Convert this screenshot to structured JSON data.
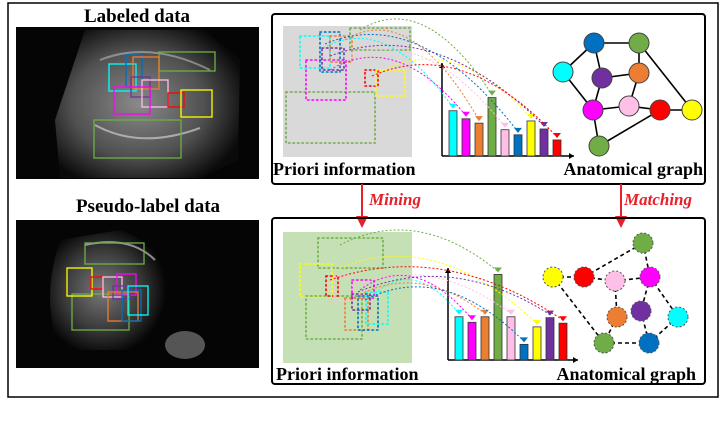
{
  "labels": {
    "labeled_data": "Labeled data",
    "pseudo_label_data": "Pseudo-label data",
    "priori_top": "Priori information",
    "graph_top": "Anatomical graph",
    "priori_bottom": "Priori information",
    "graph_bottom": "Anatomical graph",
    "mining": "Mining",
    "matching": "Matching"
  },
  "structure_colors": {
    "cyan": "#00ffff",
    "blue": "#0070c0",
    "orange": "#ed7d31",
    "green": "#70ad47",
    "purple": "#7030a0",
    "pink": "#ffbfe6",
    "magenta": "#ff00ff",
    "red": "#ff0000",
    "yellow": "#ffff00"
  },
  "top_histogram": {
    "order": [
      "cyan",
      "magenta",
      "orange",
      "green",
      "pink",
      "blue",
      "yellow",
      "purple",
      "red"
    ],
    "relative_heights": [
      0.62,
      0.51,
      0.45,
      0.8,
      0.36,
      0.29,
      0.48,
      0.37,
      0.22
    ]
  },
  "bottom_histogram": {
    "order": [
      "cyan",
      "magenta",
      "orange",
      "green",
      "pink",
      "blue",
      "yellow",
      "purple",
      "red"
    ],
    "relative_heights": [
      0.47,
      0.41,
      0.47,
      0.93,
      0.47,
      0.17,
      0.36,
      0.46,
      0.4
    ]
  },
  "top_graph_edges": [
    [
      "blue",
      "green"
    ],
    [
      "blue",
      "cyan"
    ],
    [
      "green",
      "orange"
    ],
    [
      "green",
      "yellow"
    ],
    [
      "blue",
      "purple"
    ],
    [
      "purple",
      "orange"
    ],
    [
      "cyan",
      "magenta"
    ],
    [
      "purple",
      "magenta"
    ],
    [
      "orange",
      "pink"
    ],
    [
      "magenta",
      "pink"
    ],
    [
      "pink",
      "red"
    ],
    [
      "red",
      "yellow"
    ],
    [
      "magenta",
      "green2"
    ],
    [
      "green2",
      "red"
    ]
  ],
  "bottom_graph_edges": [
    [
      "yellow",
      "red"
    ],
    [
      "red",
      "pink"
    ],
    [
      "pink",
      "magenta"
    ],
    [
      "red",
      "green"
    ],
    [
      "green",
      "magenta"
    ],
    [
      "yellow",
      "green2"
    ],
    [
      "pink",
      "orange"
    ],
    [
      "magenta",
      "purple"
    ],
    [
      "magenta",
      "cyan"
    ],
    [
      "orange",
      "green2"
    ],
    [
      "purple",
      "blue"
    ],
    [
      "green2",
      "blue"
    ],
    [
      "cyan",
      "blue"
    ]
  ]
}
